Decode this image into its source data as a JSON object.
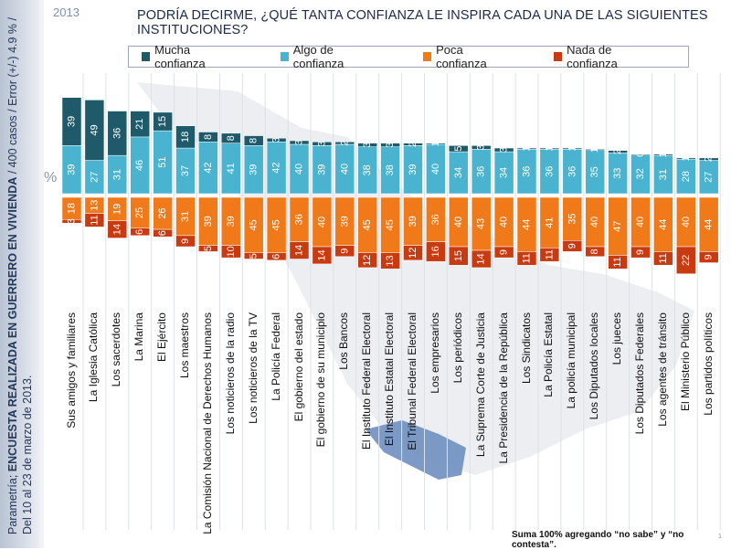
{
  "year": "2013",
  "title": "PODRÍA DECIRME, ¿QUÉ TANTA CONFIANZA LE INSPIRA CADA UNA DE LAS SIGUIENTES INSTITUCIONES?",
  "side_note": {
    "prefix": "Parametría; ",
    "bold": "ENCUESTA  REALIZADA EN GUERRERO EN VIVIENDA",
    "rest": " / 400 casos / Error (+/-) 4.9 % / Del 10 al 23 de marzo de 2013."
  },
  "footnote": "Suma 100% agregando “no sabe” y “no contesta”.",
  "page_number": "1",
  "chart_data": {
    "type": "bar",
    "stacked": "diverging",
    "title": "PODRÍA DECIRME, ¿QUÉ TANTA CONFIANZA LE INSPIRA CADA UNA DE LAS SIGUIENTES INSTITUCIONES?",
    "ylabel": "%",
    "legend_position": "top",
    "categories": [
      "Sus amigos y familiares",
      "La Iglesia Católica",
      "Los sacerdotes",
      "La Marina",
      "El Ejército",
      "Los maestros",
      "La Comisión Nacional de Derechos Humanos",
      "Los noticieros de la radio",
      "Los noticieros de la TV",
      "La Policía Federal",
      "El gobierno del estado",
      "El gobierno de su municipio",
      "Los Bancos",
      "El Instituto Federal Electoral",
      "El Instituto Estatal Electoral",
      "El Tribunal Federal Electoral",
      "Los empresarios",
      "Los periódicos",
      "La Suprema Corte de Justicia",
      "La Presidencia de la República",
      "Los Sindicatos",
      "La Policía Estatal",
      "La policía municipal",
      "Los Diputados locales",
      "Los jueces",
      "Los Diputados Federales",
      "Los agentes de tránsito",
      "El Ministerio Público",
      "Los partidos políticos"
    ],
    "series": [
      {
        "name": "Mucha confianza",
        "color": "#1f5a6a",
        "direction": "up",
        "values": [
          39,
          49,
          36,
          21,
          15,
          18,
          8,
          8,
          8,
          3,
          3,
          3,
          2,
          3,
          3,
          2,
          1,
          5,
          3,
          3,
          1,
          1,
          1,
          1,
          2,
          0,
          1,
          1,
          2
        ]
      },
      {
        "name": "Algo de confianza",
        "color": "#4ab3cf",
        "direction": "up",
        "values": [
          39,
          27,
          31,
          46,
          51,
          37,
          42,
          41,
          39,
          42,
          40,
          39,
          40,
          38,
          38,
          39,
          40,
          34,
          36,
          34,
          36,
          36,
          36,
          35,
          33,
          32,
          31,
          28,
          27
        ]
      },
      {
        "name": "Poca confianza",
        "color": "#f07a1a",
        "direction": "down",
        "values": [
          18,
          13,
          19,
          25,
          26,
          31,
          39,
          39,
          45,
          45,
          36,
          40,
          39,
          45,
          45,
          39,
          36,
          40,
          43,
          40,
          44,
          41,
          35,
          40,
          47,
          40,
          44,
          40,
          44
        ]
      },
      {
        "name": "Nada de confianza",
        "color": "#c83a10",
        "direction": "down",
        "values": [
          3,
          11,
          14,
          6,
          6,
          9,
          5,
          10,
          5,
          6,
          14,
          14,
          9,
          12,
          13,
          12,
          16,
          15,
          14,
          9,
          11,
          11,
          9,
          8,
          11,
          9,
          11,
          22,
          9
        ]
      }
    ]
  }
}
